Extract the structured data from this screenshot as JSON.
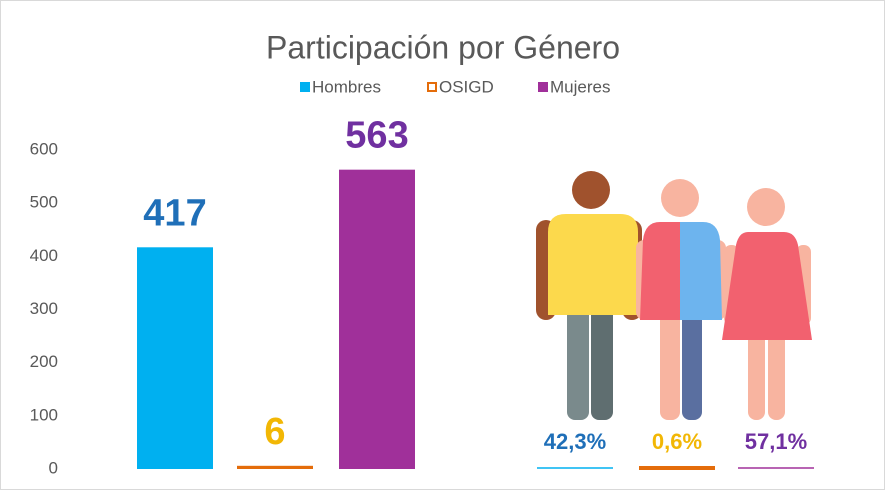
{
  "chart_data": {
    "type": "bar",
    "title": "Participación por Género",
    "categories": [
      "Hombres",
      "OSIGD",
      "Mujeres"
    ],
    "series": [
      {
        "name": "Hombres",
        "color": "#00b0f0"
      },
      {
        "name": "OSIGD",
        "color": "#e46c0a"
      },
      {
        "name": "Mujeres",
        "color": "#a0309a"
      }
    ],
    "values": [
      417,
      6,
      563
    ],
    "label_colors": [
      "#1f6fb8",
      "#f2b705",
      "#7030a0"
    ],
    "shares": {
      "values": [
        42.3,
        0.6,
        57.1
      ],
      "value_labels": [
        "42,3%",
        "0,6%",
        "57,1%"
      ]
    },
    "ylim": [
      0,
      600
    ],
    "yticks": [
      0,
      100,
      200,
      300,
      400,
      500,
      600
    ],
    "grid": false
  }
}
